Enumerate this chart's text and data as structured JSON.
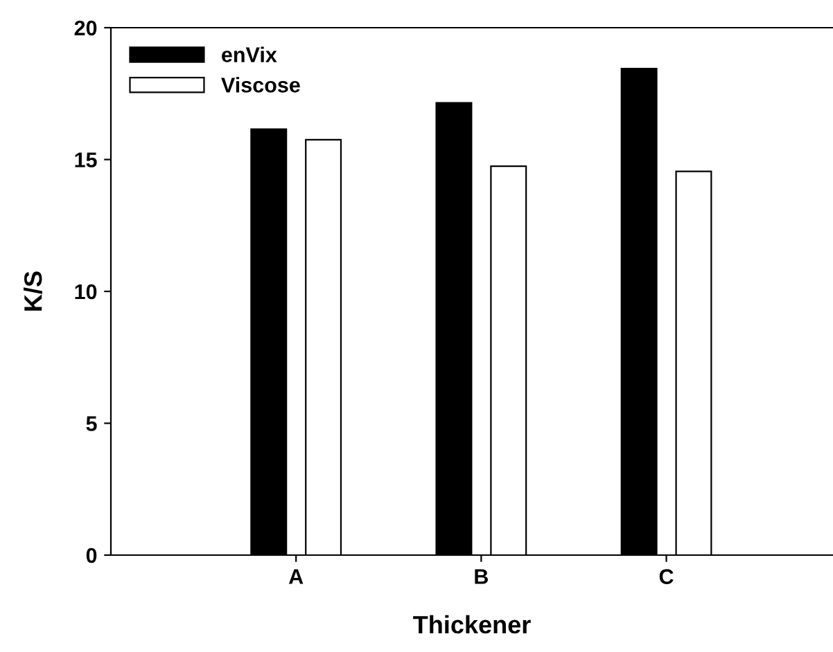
{
  "chart_data": {
    "type": "bar",
    "xlabel": "Thickener",
    "ylabel": "K/S",
    "categories": [
      "A",
      "B",
      "C"
    ],
    "series": [
      {
        "name": "enVix",
        "color": "#000000",
        "values": [
          16.15,
          17.15,
          18.45
        ]
      },
      {
        "name": "Viscose",
        "color": "#ffffff",
        "values": [
          15.75,
          14.75,
          14.55
        ]
      }
    ],
    "ylim": [
      0,
      20
    ],
    "yticks": [
      0,
      5,
      10,
      15,
      20
    ],
    "grid": false,
    "legend": "top left"
  }
}
